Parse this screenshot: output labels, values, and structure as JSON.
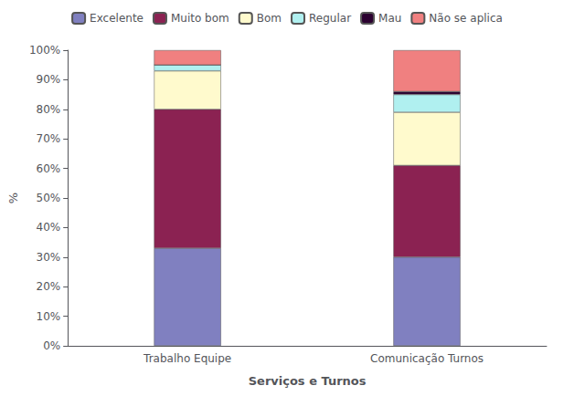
{
  "chart_data": {
    "type": "bar",
    "stacked": true,
    "categories": [
      "Trabalho Equipe",
      "Comunicação Turnos"
    ],
    "series": [
      {
        "name": "Excelente",
        "color": "#8080C0",
        "values": [
          33,
          30
        ]
      },
      {
        "name": "Muito bom",
        "color": "#8B2252",
        "values": [
          47,
          31
        ]
      },
      {
        "name": "Bom",
        "color": "#FFFACD",
        "values": [
          13,
          18
        ]
      },
      {
        "name": "Regular",
        "color": "#B0F0F0",
        "values": [
          2,
          6
        ]
      },
      {
        "name": "Mau",
        "color": "#2B0030",
        "values": [
          0,
          1
        ]
      },
      {
        "name": "Não se aplica",
        "color": "#F08080",
        "values": [
          5,
          14
        ]
      }
    ],
    "xlabel": "Serviços e Turnos",
    "ylabel": "%",
    "ylim": [
      0,
      100
    ],
    "yticks": [
      {
        "value": 0,
        "label": "0%"
      },
      {
        "value": 10,
        "label": "10%"
      },
      {
        "value": 20,
        "label": "20%"
      },
      {
        "value": 30,
        "label": "30%"
      },
      {
        "value": 40,
        "label": "40%"
      },
      {
        "value": 50,
        "label": "50%"
      },
      {
        "value": 60,
        "label": "60%"
      },
      {
        "value": 70,
        "label": "70%"
      },
      {
        "value": 80,
        "label": "80%"
      },
      {
        "value": 90,
        "label": "90%"
      },
      {
        "value": 100,
        "label": "100%"
      }
    ],
    "grid": false,
    "legend": "top"
  }
}
